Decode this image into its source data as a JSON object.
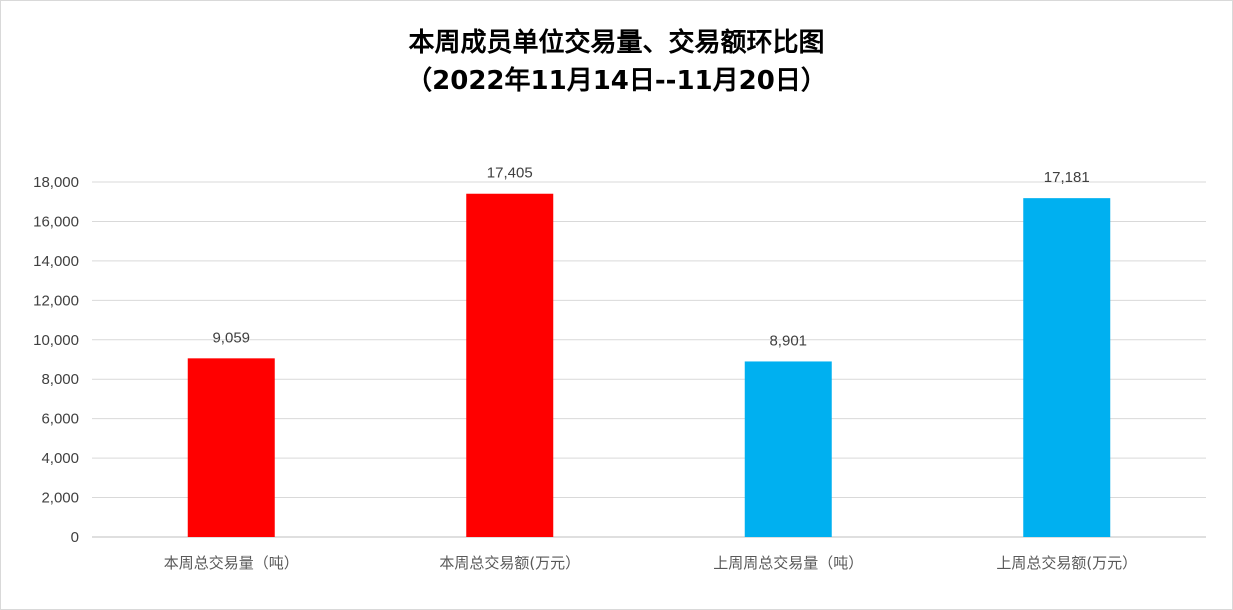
{
  "chart_data": {
    "type": "bar",
    "title": "本周成员单位交易量、交易额环比图",
    "subtitle": "（2022年11月14日--11月20日）",
    "categories": [
      "本周总交易量（吨）",
      "本周总交易额(万元）",
      "上周周总交易量（吨）",
      "上周总交易额(万元）"
    ],
    "values": [
      9059,
      17405,
      8901,
      17181
    ],
    "value_labels": [
      "9,059",
      "17,405",
      "8,901",
      "17,181"
    ],
    "bar_colors": [
      "#ff0000",
      "#ff0000",
      "#00b0f0",
      "#00b0f0"
    ],
    "ylim": [
      0,
      18000
    ],
    "yticks": [
      0,
      2000,
      4000,
      6000,
      8000,
      10000,
      12000,
      14000,
      16000,
      18000
    ],
    "ytick_labels": [
      "0",
      "2,000",
      "4,000",
      "6,000",
      "8,000",
      "10,000",
      "12,000",
      "14,000",
      "16,000",
      "18,000"
    ],
    "grid": true,
    "legend": "none",
    "xlabel": "",
    "ylabel": ""
  }
}
